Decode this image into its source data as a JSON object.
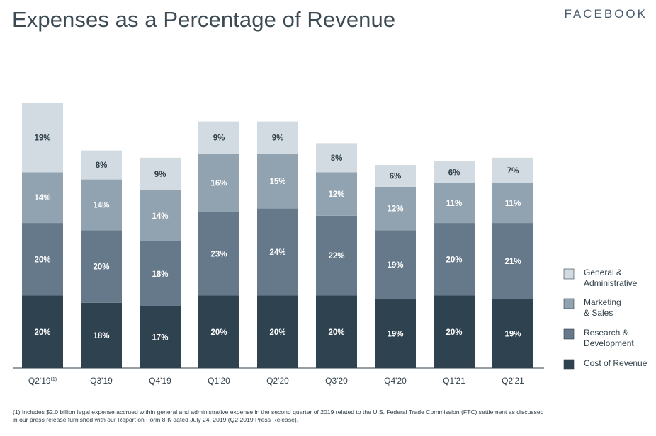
{
  "header": {
    "title": "Expenses as a Percentage of Revenue",
    "brand": "FACEBOOK"
  },
  "chart_data": {
    "type": "bar",
    "stacked": true,
    "title": "Expenses as a Percentage of Revenue",
    "categories": [
      "Q2'19",
      "Q3'19",
      "Q4'19",
      "Q1'20",
      "Q2'20",
      "Q3'20",
      "Q4'20",
      "Q1'21",
      "Q2'21"
    ],
    "category_footnote_markers": [
      "(1)",
      "",
      "",
      "",
      "",
      "",
      "",
      "",
      ""
    ],
    "series": [
      {
        "name": "Cost of Revenue",
        "color": "#2f4250",
        "text_color": "#ffffff",
        "values": [
          20,
          18,
          17,
          20,
          20,
          20,
          19,
          20,
          19
        ],
        "labels": [
          "20%",
          "18%",
          "17%",
          "20%",
          "20%",
          "20%",
          "19%",
          "20%",
          "19%"
        ]
      },
      {
        "name": "Research & Development",
        "color": "#65798a",
        "text_color": "#ffffff",
        "values": [
          20,
          20,
          18,
          23,
          24,
          22,
          19,
          20,
          21
        ],
        "labels": [
          "20%",
          "20%",
          "18%",
          "23%",
          "24%",
          "22%",
          "19%",
          "20%",
          "21%"
        ]
      },
      {
        "name": "Marketing & Sales",
        "color": "#91a3b1",
        "text_color": "#ffffff",
        "values": [
          14,
          14,
          14,
          16,
          15,
          12,
          12,
          11,
          11
        ],
        "labels": [
          "14%",
          "14%",
          "14%",
          "16%",
          "15%",
          "12%",
          "12%",
          "11%",
          "11%"
        ]
      },
      {
        "name": "General & Administrative",
        "color": "#d2dbe2",
        "text_color": "#2f3e47",
        "values": [
          19,
          8,
          9,
          9,
          9,
          8,
          6,
          6,
          7
        ],
        "labels": [
          "19%",
          "8%",
          "9%",
          "9%",
          "9%",
          "8%",
          "6%",
          "6%",
          "7%"
        ]
      }
    ],
    "legend": {
      "position": "right",
      "items": [
        {
          "line1": "General &",
          "line2": "Administrative",
          "color": "#d2dbe2"
        },
        {
          "line1": "Marketing",
          "line2": "& Sales",
          "color": "#91a3b1"
        },
        {
          "line1": "Research &",
          "line2": "Development",
          "color": "#65798a"
        },
        {
          "line1": "Cost of Revenue",
          "line2": "",
          "color": "#2f4250"
        }
      ]
    },
    "xlabel": "",
    "ylabel": "",
    "ylim": [
      0,
      73
    ],
    "grid": false
  },
  "footnote": {
    "line1": "(1) Includes $2.0 billion legal expense accrued within general and administrative expense in the second quarter of 2019 related to the U.S. Federal Trade Commission (FTC) settlement as discussed",
    "line2": "in our press release furnished with our Report on Form 8-K dated July 24, 2019 (Q2 2019 Press Release)."
  }
}
